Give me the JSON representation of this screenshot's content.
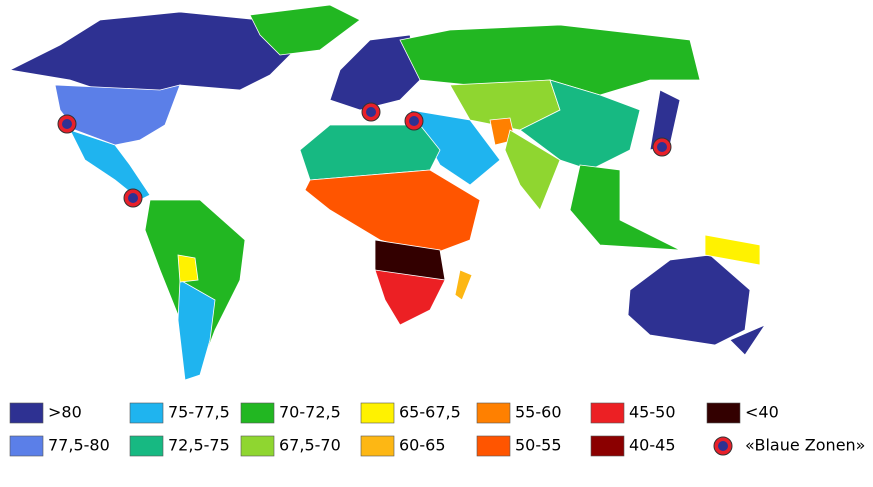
{
  "legend": {
    "items": [
      {
        "label": ">80",
        "color": "#2e3192"
      },
      {
        "label": "77,5-80",
        "color": "#5b7fe8"
      },
      {
        "label": "75-77,5",
        "color": "#1fb4ef"
      },
      {
        "label": "72,5-75",
        "color": "#17b982"
      },
      {
        "label": "70-72,5",
        "color": "#22b722"
      },
      {
        "label": "67,5-70",
        "color": "#8fd630"
      },
      {
        "label": "65-67,5",
        "color": "#fff200"
      },
      {
        "label": "60-65",
        "color": "#fdb714"
      },
      {
        "label": "55-60",
        "color": "#ff8000"
      },
      {
        "label": "50-55",
        "color": "#ff5500"
      },
      {
        "label": "45-50",
        "color": "#ec2024"
      },
      {
        "label": "40-45",
        "color": "#8b0000"
      },
      {
        "label": "<40",
        "color": "#330000"
      }
    ],
    "blue_zones": {
      "label": "«Blaue Zonen»"
    }
  }
}
